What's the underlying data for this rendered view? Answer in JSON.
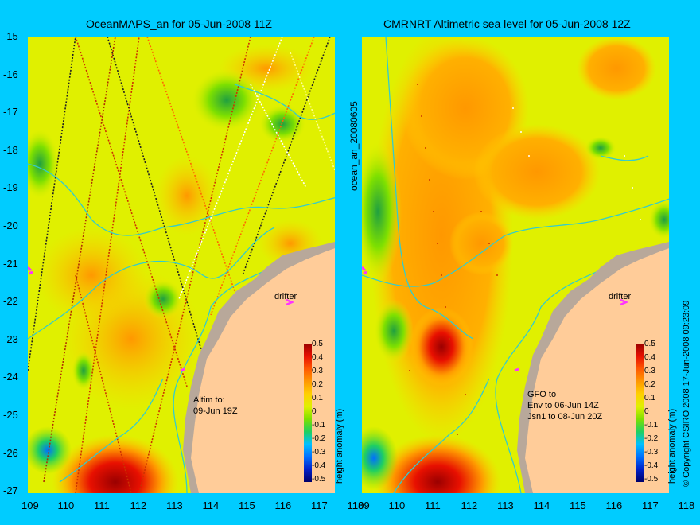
{
  "panels": [
    {
      "title": "OceanMAPS_an for 05-Jun-2008 11Z",
      "drifter_label": "drifter",
      "note_lines": [
        "Altim to:",
        "09-Jun 19Z"
      ]
    },
    {
      "title": "CMRNRT Altimetric sea level  for 05-Jun-2008 12Z",
      "drifter_label": "drifter",
      "note_lines": [
        "GFO to",
        "Env to 06-Jun 14Z",
        "Jsn1 to 08-Jun 20Z"
      ]
    }
  ],
  "y_ticks": [
    "-15",
    "-16",
    "-17",
    "-18",
    "-19",
    "-20",
    "-21",
    "-22",
    "-23",
    "-24",
    "-25",
    "-26",
    "-27"
  ],
  "x_ticks": [
    "109",
    "110",
    "111",
    "112",
    "113",
    "114",
    "115",
    "116",
    "117",
    "118"
  ],
  "colorbar": {
    "label": "height anomaly (m)",
    "ticks": [
      "0.5",
      "0.4",
      "0.3",
      "0.2",
      "0.1",
      "0",
      "-0.1",
      "-0.2",
      "-0.3",
      "-0.4",
      "-0.5"
    ],
    "colors": [
      "#00006a",
      "#0020c8",
      "#0070ff",
      "#00c0ff",
      "#20d060",
      "#7ee000",
      "#e0f000",
      "#ffd000",
      "#ff9800",
      "#ff5800",
      "#e81000",
      "#9a0000"
    ]
  },
  "middle_vertical_label": "ocean_an_20080605",
  "right_vertical_label": "© Copyright CSIRO 2008  17-Jun-2008 09:23:09",
  "colors": {
    "background": "#00ccff",
    "land": "#ffcc99",
    "shelf": "#b8a89a",
    "contour": "#33cccc",
    "drifter_marker": "#ff33ff"
  }
}
